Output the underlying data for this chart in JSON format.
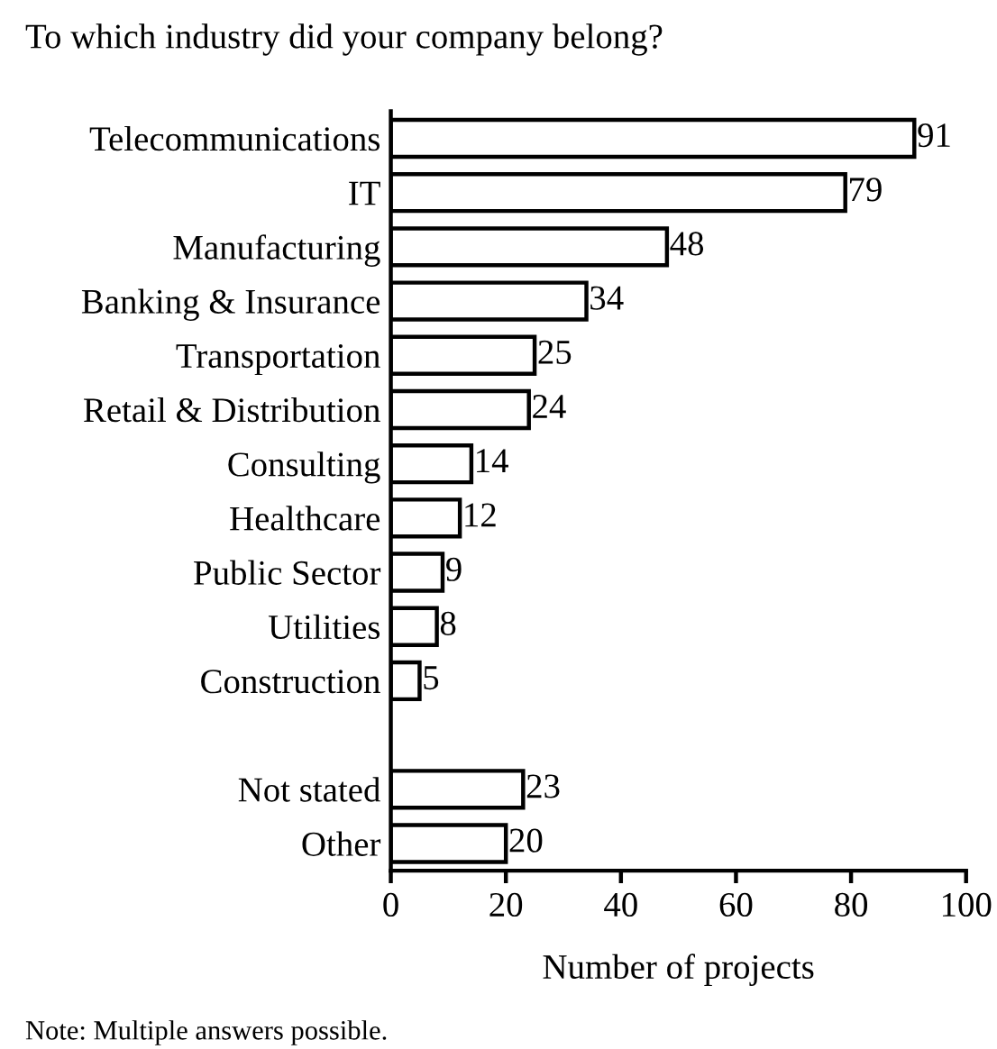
{
  "chart_data": {
    "type": "bar",
    "orientation": "horizontal",
    "title": "To which industry did your company belong?",
    "categories": [
      "Telecommunications",
      "IT",
      "Manufacturing",
      "Banking & Insurance",
      "Transportation",
      "Retail & Distribution",
      "Consulting",
      "Healthcare",
      "Public Sector",
      "Utilities",
      "Construction",
      null,
      "Not stated",
      "Other"
    ],
    "values": [
      91,
      79,
      48,
      34,
      25,
      24,
      14,
      12,
      9,
      8,
      5,
      null,
      23,
      20
    ],
    "color": "#ffffff",
    "xlabel": "Number of projects",
    "xlim": [
      0,
      100
    ],
    "xticks": [
      0,
      20,
      40,
      60,
      80,
      100
    ],
    "data_labels": true,
    "grid": false,
    "legend": false,
    "annotations": [
      "Note: Multiple answers possible."
    ]
  }
}
